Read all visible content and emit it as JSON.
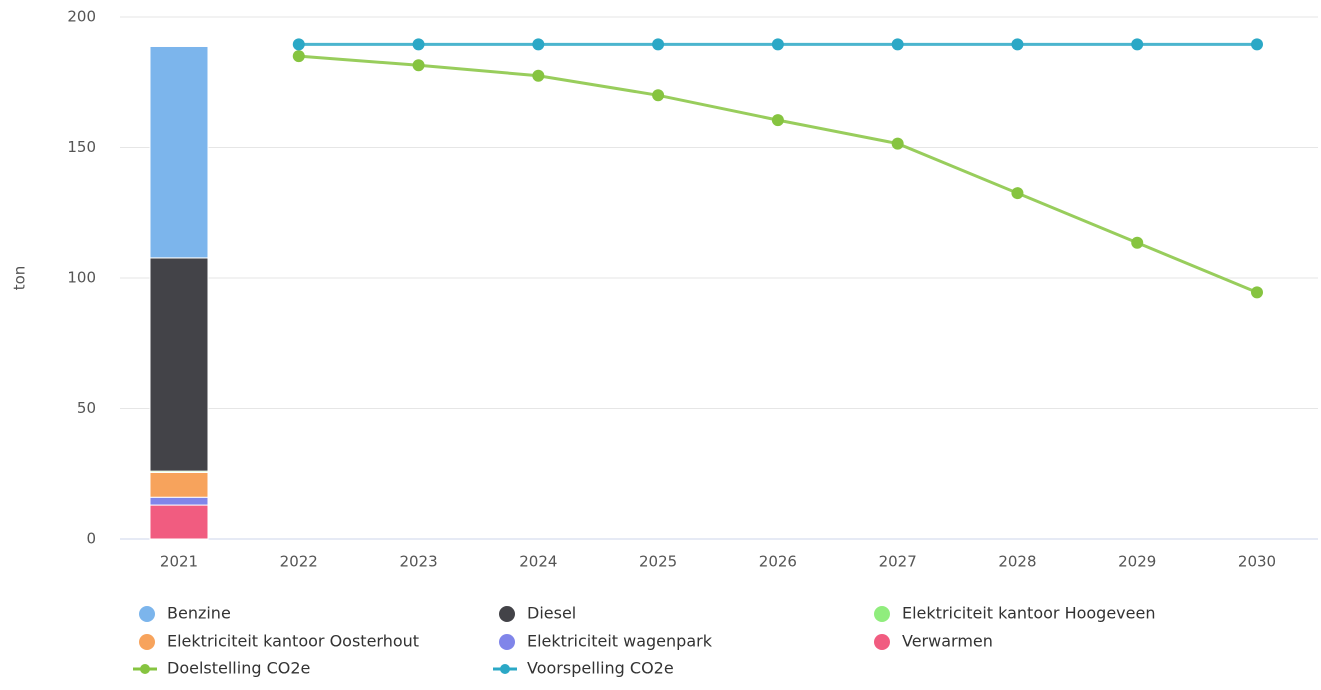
{
  "chart_data": {
    "type": "bar",
    "y_label": "ton",
    "categories": [
      "2021",
      "2022",
      "2023",
      "2024",
      "2025",
      "2026",
      "2027",
      "2028",
      "2029",
      "2030"
    ],
    "ylim": [
      0,
      200
    ],
    "yticks": [
      0,
      50,
      100,
      150,
      200
    ],
    "grid": true,
    "stacked": true,
    "legend": "bottom",
    "series": [
      {
        "name": "Benzine",
        "color": "#7cb5ec",
        "type": "column",
        "values": [
          81,
          null,
          null,
          null,
          null,
          null,
          null,
          null,
          null,
          null
        ]
      },
      {
        "name": "Diesel",
        "color": "#434348",
        "type": "column",
        "values": [
          81.7,
          null,
          null,
          null,
          null,
          null,
          null,
          null,
          null,
          null
        ]
      },
      {
        "name": "Elektriciteit kantoor Hoogeveen",
        "color": "#90ed7d",
        "type": "column",
        "values": [
          0.5,
          null,
          null,
          null,
          null,
          null,
          null,
          null,
          null,
          null
        ]
      },
      {
        "name": "Elektriciteit kantoor Oosterhout",
        "color": "#f7a35c",
        "type": "column",
        "values": [
          9.5,
          null,
          null,
          null,
          null,
          null,
          null,
          null,
          null,
          null
        ]
      },
      {
        "name": "Elektriciteit wagenpark",
        "color": "#8085e9",
        "type": "column",
        "values": [
          3,
          null,
          null,
          null,
          null,
          null,
          null,
          null,
          null,
          null
        ]
      },
      {
        "name": "Verwarmen",
        "color": "#f15c80",
        "type": "column",
        "values": [
          13,
          null,
          null,
          null,
          null,
          null,
          null,
          null,
          null,
          null
        ]
      },
      {
        "name": "Doelstelling CO2e",
        "color": "#86c440",
        "type": "line",
        "values": [
          null,
          185,
          181.5,
          177.5,
          170,
          160.5,
          151.5,
          132.5,
          113.5,
          94.5
        ]
      },
      {
        "name": "Voorspelling CO2e",
        "color": "#2ba8c6",
        "type": "line",
        "values": [
          null,
          189.5,
          189.5,
          189.5,
          189.5,
          189.5,
          189.5,
          189.5,
          189.5,
          189.5
        ]
      }
    ]
  }
}
